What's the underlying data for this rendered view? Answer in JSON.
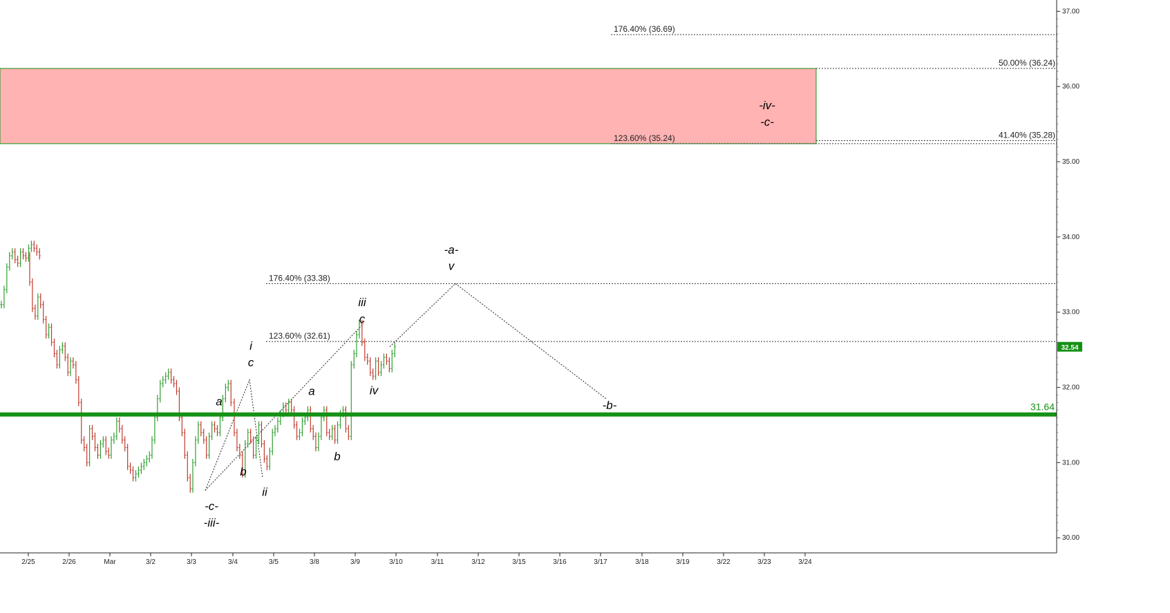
{
  "chart_data": {
    "type": "ohlc",
    "title": "",
    "xlabel": "",
    "ylabel": "",
    "ylim": [
      29.8,
      37.15
    ],
    "grid": false,
    "colors": {
      "up": "#2e9e2e",
      "down": "#c0392b",
      "resistance_zone": "#ffb3b3",
      "support_line": "#159115",
      "axis": "#222222"
    },
    "x_ticks": [
      "2/25",
      "2/26",
      "Mar",
      "3/2",
      "3/3",
      "3/4",
      "3/5",
      "3/8",
      "3/9",
      "3/10",
      "3/11",
      "3/12",
      "3/15",
      "3/16",
      "3/17",
      "3/18",
      "3/19",
      "3/22",
      "3/23",
      "3/24"
    ],
    "y_ticks": [
      "30.00",
      "31.00",
      "32.00",
      "33.00",
      "34.00",
      "35.00",
      "36.00",
      "37.00"
    ],
    "last_price": "32.54",
    "support": {
      "value": 31.64,
      "label": "31.64"
    },
    "resistance_zone": {
      "low": 35.24,
      "high": 36.24
    },
    "fib_levels": [
      {
        "value": 36.69,
        "label": "176.40% (36.69)"
      },
      {
        "value": 36.24,
        "label": "50.00% (36.24)"
      },
      {
        "value": 35.28,
        "label": "41.40% (35.28)"
      },
      {
        "value": 35.24,
        "label": "123.60% (35.24)"
      },
      {
        "value": 33.38,
        "label": "176.40% (33.38)"
      },
      {
        "value": 32.61,
        "label": "123.60% (32.61)"
      }
    ],
    "projection_path": [
      {
        "x": "3/11",
        "y": 33.38
      },
      {
        "x": "3/17",
        "y": 31.85
      }
    ],
    "series": [
      {
        "date": "2/24",
        "values": [
          33.1,
          33.3,
          33.6,
          33.75,
          33.8,
          33.7,
          33.65,
          33.8,
          33.75,
          33.72,
          33.85,
          33.9,
          33.85,
          33.8,
          33.75
        ]
      },
      {
        "date": "2/25",
        "values": [
          33.4,
          33.05,
          32.95,
          33.2,
          33.1,
          32.9,
          32.7,
          32.8,
          32.6,
          32.45,
          32.3,
          32.5,
          32.55,
          32.4,
          32.2
        ]
      },
      {
        "date": "2/26",
        "values": [
          32.35,
          32.3,
          32.1,
          31.8,
          31.3,
          31.2,
          31.0,
          31.45,
          31.35,
          31.2,
          31.1,
          31.25,
          31.3,
          31.15,
          31.1
        ]
      },
      {
        "date": "Mar",
        "values": [
          31.3,
          31.35,
          31.55,
          31.45,
          31.3,
          31.2,
          30.95,
          30.9,
          30.8,
          30.85,
          30.9,
          30.95,
          31.0,
          31.05,
          31.1
        ]
      },
      {
        "date": "3/2",
        "values": [
          31.3,
          31.6,
          31.85,
          32.05,
          32.1,
          32.15,
          32.2,
          32.1,
          32.05,
          31.95,
          31.6,
          31.4,
          31.1,
          30.8,
          30.65
        ]
      },
      {
        "date": "3/3",
        "values": [
          31.0,
          31.3,
          31.5,
          31.4,
          31.3,
          31.1,
          31.35,
          31.5,
          31.45,
          31.4,
          31.6,
          31.85,
          32.0,
          32.05,
          31.8
        ]
      },
      {
        "date": "3/4",
        "values": [
          31.4,
          31.2,
          31.1,
          30.85,
          31.25,
          31.4,
          31.3,
          31.1,
          31.3,
          31.5,
          31.25,
          31.05,
          30.95,
          31.15,
          31.4
        ]
      },
      {
        "date": "3/5",
        "values": [
          31.45,
          31.55,
          31.65,
          31.75,
          31.7,
          31.8,
          31.7,
          31.5,
          31.35,
          31.4,
          31.55,
          31.6,
          31.7,
          31.45,
          31.35
        ]
      },
      {
        "date": "3/8",
        "values": [
          31.2,
          31.35,
          31.6,
          31.7,
          31.4,
          31.35,
          31.45,
          31.3,
          31.5,
          31.65,
          31.7,
          31.45,
          31.35,
          32.3,
          32.45
        ]
      },
      {
        "date": "3/9",
        "values": [
          32.7,
          32.85,
          32.6,
          32.4,
          32.35,
          32.2,
          32.15,
          32.35,
          32.2,
          32.3,
          32.4,
          32.35,
          32.25,
          32.45,
          32.54
        ]
      }
    ]
  },
  "wave_labels": [
    {
      "text": "-c-",
      "date": "3/3",
      "value": 30.37
    },
    {
      "text": "-iii-",
      "date": "3/3",
      "value": 30.15
    },
    {
      "text": "a",
      "date": "3/3",
      "value": 31.76
    },
    {
      "text": "i",
      "date": "3/4",
      "value": 32.5
    },
    {
      "text": "c",
      "date": "3/4",
      "value": 32.28
    },
    {
      "text": "b",
      "date": "3/4",
      "value": 30.83
    },
    {
      "text": "ii",
      "date": "3/4",
      "value": 30.56
    },
    {
      "text": "a",
      "date": "3/8",
      "value": 31.9
    },
    {
      "text": "b",
      "date": "3/8",
      "value": 31.03
    },
    {
      "text": "iii",
      "date": "3/9",
      "value": 33.08
    },
    {
      "text": "c",
      "date": "3/9",
      "value": 32.86
    },
    {
      "text": "iv",
      "date": "3/9",
      "value": 31.91
    },
    {
      "text": "-a-",
      "date": "3/11",
      "value": 33.78
    },
    {
      "text": "v",
      "date": "3/11",
      "value": 33.56
    },
    {
      "text": "-b-",
      "date": "3/17",
      "value": 31.71
    },
    {
      "text": "-iv-",
      "date": "3/23",
      "value": 35.7
    },
    {
      "text": "-c-",
      "date": "3/23",
      "value": 35.48
    }
  ]
}
